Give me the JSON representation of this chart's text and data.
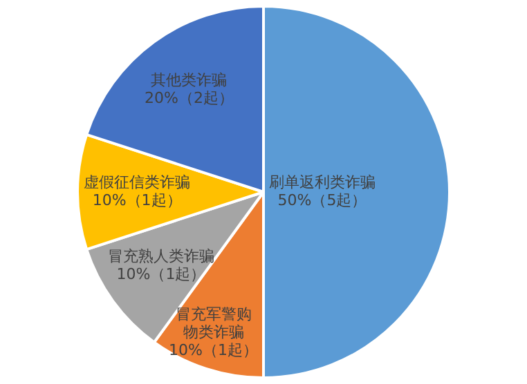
{
  "chart_data": {
    "type": "pie",
    "categories": [
      "刷单返利类诈骗",
      "冒充军警购物类诈骗",
      "冒充熟人类诈骗",
      "虚假征信类诈骗",
      "其他类诈骗"
    ],
    "values": [
      50,
      10,
      10,
      10,
      20
    ],
    "colors": [
      "#5b9bd5",
      "#ed7d31",
      "#a5a5a5",
      "#ffc000",
      "#4472c4"
    ],
    "value_labels": [
      "50%（5起）",
      "10%（1起）",
      "10%（1起）",
      "10%（1起）",
      "20%（2起）"
    ],
    "legend": false
  }
}
